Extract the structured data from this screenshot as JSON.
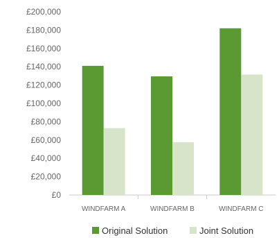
{
  "colors": {
    "original": "#5b9a32",
    "joint": "#d7e4c9",
    "axis": "#c8c8c8",
    "text": "#666666"
  },
  "chart_data": {
    "type": "bar",
    "title": "",
    "xlabel": "",
    "ylabel": "",
    "ylim": [
      0,
      200000
    ],
    "y_ticks": [
      "£0",
      "£20,000",
      "£40,000",
      "£60,000",
      "£80,000",
      "£100,000",
      "£120,000",
      "£140,000",
      "£160,000",
      "£180,000",
      "£200,000"
    ],
    "categories": [
      "WINDFARM A",
      "WINDFARM B",
      "WINDFARM C"
    ],
    "series": [
      {
        "name": "Original Solution",
        "values": [
          141000,
          129500,
          182000
        ]
      },
      {
        "name": "Joint Solution",
        "values": [
          73000,
          57500,
          131500
        ]
      }
    ],
    "grid": false,
    "legend": "bottom"
  }
}
